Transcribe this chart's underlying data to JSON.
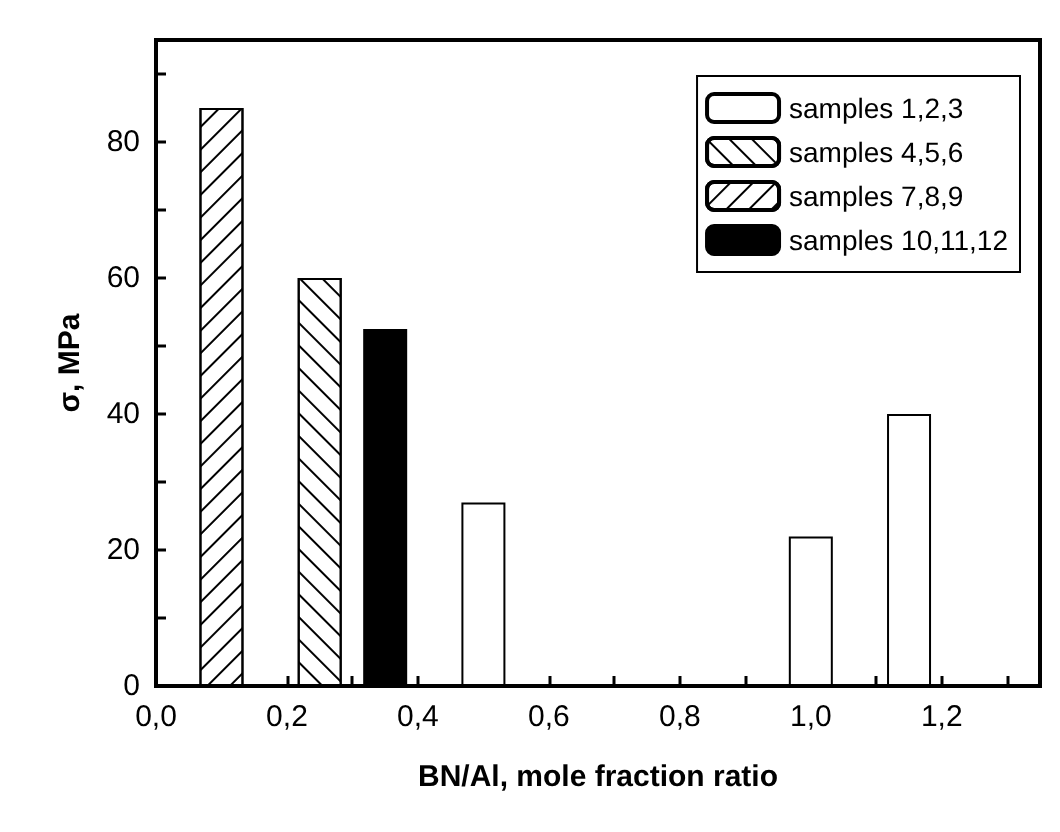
{
  "chart_data": {
    "type": "bar",
    "xlabel": "BN/Al, mole fraction ratio",
    "ylabel": "σ, MPa",
    "xlim": [
      0,
      1.35
    ],
    "ylim": [
      0,
      95
    ],
    "xticks": [
      {
        "value": 0,
        "label": "0,0"
      },
      {
        "value": 0.1,
        "label": null
      },
      {
        "value": 0.2,
        "label": "0,2"
      },
      {
        "value": 0.3,
        "label": null
      },
      {
        "value": 0.4,
        "label": "0,4"
      },
      {
        "value": 0.5,
        "label": null
      },
      {
        "value": 0.6,
        "label": "0,6"
      },
      {
        "value": 0.7,
        "label": null
      },
      {
        "value": 0.8,
        "label": "0,8"
      },
      {
        "value": 0.9,
        "label": null
      },
      {
        "value": 1.0,
        "label": "1,0"
      },
      {
        "value": 1.1,
        "label": null
      },
      {
        "value": 1.2,
        "label": "1,2"
      },
      {
        "value": 1.3,
        "label": null
      }
    ],
    "yticks": [
      0,
      {
        "value": 10,
        "label": null
      },
      20,
      {
        "value": 30,
        "label": null
      },
      40,
      {
        "value": 50,
        "label": null
      },
      60,
      {
        "value": 70,
        "label": null
      },
      80,
      {
        "value": 90,
        "label": null
      }
    ],
    "series": [
      {
        "name": "samples 1,2,3",
        "color": "#ffffff",
        "x": [
          0.5,
          1.0,
          1.15
        ],
        "values": [
          27,
          22,
          40
        ]
      },
      {
        "name": "samples 4,5,6",
        "color": "#ffffff",
        "x": [
          0.25
        ],
        "values": [
          60
        ]
      },
      {
        "name": "samples 7,8,9",
        "color": "#ffffff",
        "x": [
          0.1
        ],
        "values": [
          85
        ]
      },
      {
        "name": "samples 10,11,12",
        "color": "#000000",
        "x": [
          0.35
        ],
        "values": [
          52.5
        ]
      }
    ],
    "legend": "top right",
    "grid": false
  }
}
